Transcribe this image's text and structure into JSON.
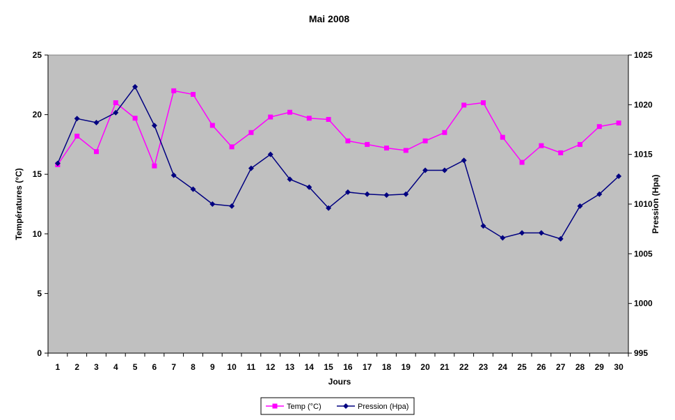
{
  "chart_data": {
    "type": "line",
    "title": "Mai 2008",
    "xlabel": "Jours",
    "ylabel": "Températures (°C)",
    "y2label": "Pression (Hpa)",
    "categories": [
      "1",
      "2",
      "3",
      "4",
      "5",
      "6",
      "7",
      "8",
      "9",
      "10",
      "11",
      "12",
      "13",
      "14",
      "15",
      "16",
      "17",
      "18",
      "19",
      "20",
      "21",
      "22",
      "23",
      "24",
      "25",
      "26",
      "27",
      "28",
      "29",
      "30"
    ],
    "ylim": [
      0,
      25
    ],
    "yticks": [
      "0",
      "5",
      "10",
      "15",
      "20",
      "25"
    ],
    "y2lim": [
      995,
      1025
    ],
    "y2ticks": [
      "995",
      "1000",
      "1005",
      "1010",
      "1015",
      "1020",
      "1025"
    ],
    "grid": false,
    "plot_background": "#c0c0c0",
    "legend_position": "bottom",
    "series": [
      {
        "name": "Temp (°C)",
        "axis": "left",
        "color": "#ff00ff",
        "marker": "square",
        "values": [
          15.8,
          18.2,
          16.9,
          21.0,
          19.7,
          15.7,
          22.0,
          21.7,
          19.1,
          17.3,
          18.5,
          19.8,
          20.2,
          19.7,
          19.6,
          17.8,
          17.5,
          17.2,
          17.0,
          17.8,
          18.5,
          20.8,
          21.0,
          18.1,
          16.0,
          17.4,
          16.8,
          17.5,
          19.0,
          19.3
        ]
      },
      {
        "name": "Pression (Hpa)",
        "axis": "right",
        "color": "#000080",
        "marker": "diamond",
        "values": [
          1014.1,
          1018.6,
          1018.2,
          1019.2,
          1021.8,
          1017.9,
          1012.9,
          1011.5,
          1010.0,
          1009.8,
          1013.6,
          1015.0,
          1012.5,
          1011.7,
          1009.6,
          1011.2,
          1011.0,
          1010.9,
          1011.0,
          1013.4,
          1013.4,
          1014.4,
          1007.8,
          1006.6,
          1007.1,
          1007.1,
          1006.5,
          1009.8,
          1011.0,
          1012.8
        ]
      }
    ]
  }
}
